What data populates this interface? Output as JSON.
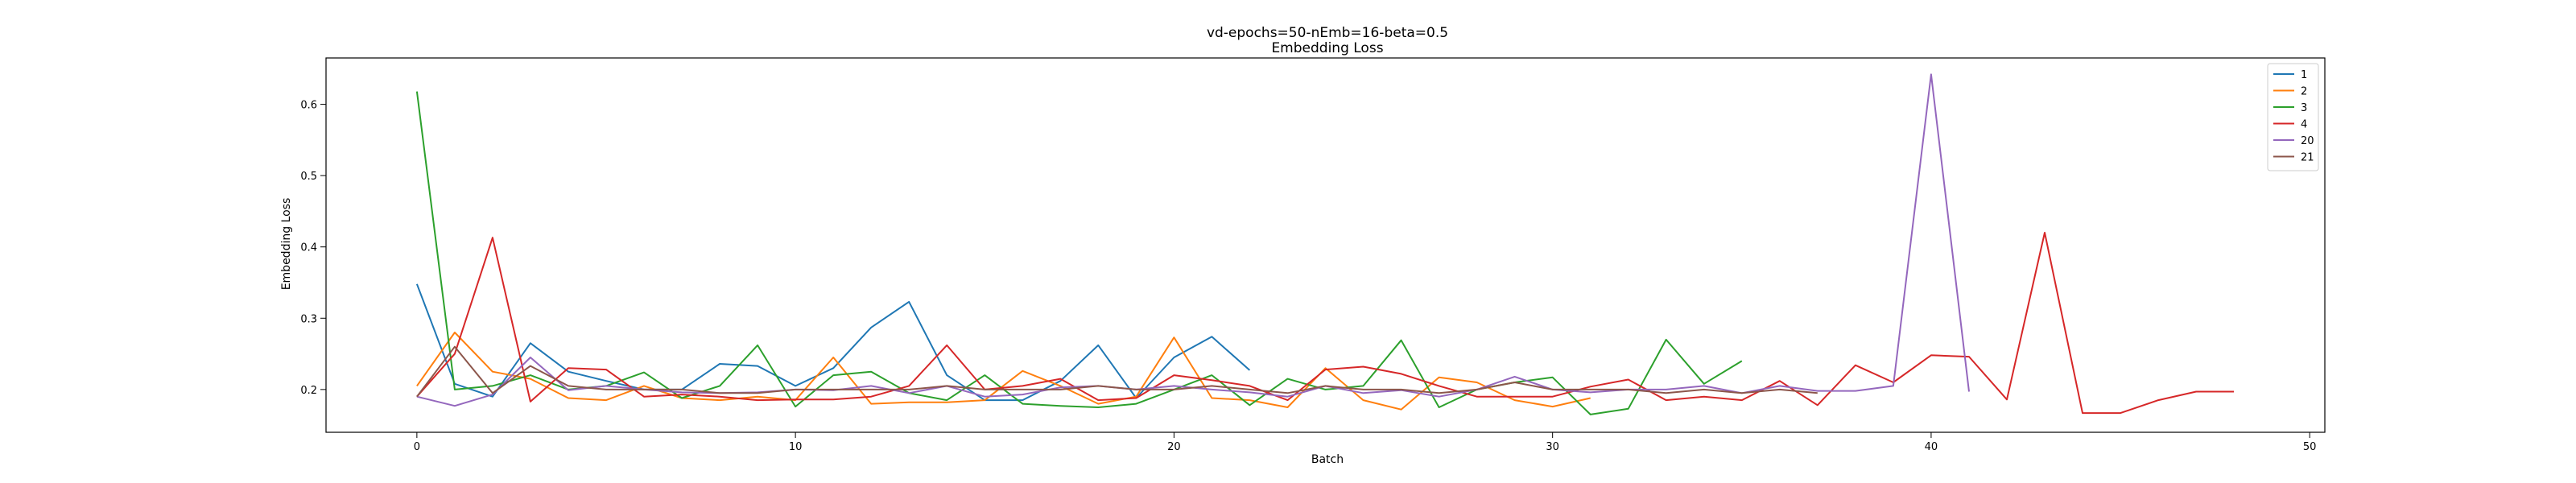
{
  "chart_data": {
    "type": "line",
    "title": "vd-epochs=50-nEmb=16-beta=0.5",
    "subtitle": "Embedding Loss",
    "xlabel": "Batch",
    "ylabel": "Embedding Loss",
    "xlim": [
      -2.4,
      50.4
    ],
    "ylim": [
      0.14,
      0.665
    ],
    "xticks": [
      0,
      10,
      20,
      30,
      40,
      50
    ],
    "yticks": [
      0.2,
      0.3,
      0.4,
      0.5,
      0.6
    ],
    "grid": false,
    "legend_position": "top-right",
    "series": [
      {
        "name": "1",
        "color": "#1f77b4",
        "values": [
          0.348,
          0.208,
          0.19,
          0.265,
          0.225,
          0.212,
          0.2,
          0.2,
          0.236,
          0.233,
          0.205,
          0.23,
          0.287,
          0.323,
          0.22,
          0.185,
          0.185,
          0.212,
          0.262,
          0.188,
          0.245,
          0.274,
          0.227
        ]
      },
      {
        "name": "2",
        "color": "#ff7f0e",
        "values": [
          0.205,
          0.28,
          0.225,
          0.215,
          0.188,
          0.185,
          0.205,
          0.188,
          0.185,
          0.19,
          0.185,
          0.245,
          0.18,
          0.182,
          0.182,
          0.185,
          0.226,
          0.205,
          0.18,
          0.19,
          0.273,
          0.188,
          0.185,
          0.175,
          0.23,
          0.185,
          0.172,
          0.217,
          0.21,
          0.185,
          0.176,
          0.188
        ]
      },
      {
        "name": "3",
        "color": "#2ca02c",
        "values": [
          0.618,
          0.2,
          0.205,
          0.22,
          0.2,
          0.205,
          0.224,
          0.188,
          0.205,
          0.262,
          0.176,
          0.22,
          0.225,
          0.195,
          0.185,
          0.22,
          0.18,
          0.177,
          0.175,
          0.18,
          0.2,
          0.22,
          0.178,
          0.215,
          0.2,
          0.205,
          0.269,
          0.175,
          0.2,
          0.21,
          0.217,
          0.165,
          0.173,
          0.27,
          0.208,
          0.24
        ]
      },
      {
        "name": "4",
        "color": "#d62728",
        "values": [
          0.19,
          0.25,
          0.413,
          0.183,
          0.23,
          0.228,
          0.19,
          0.193,
          0.19,
          0.185,
          0.186,
          0.186,
          0.19,
          0.205,
          0.262,
          0.2,
          0.205,
          0.215,
          0.185,
          0.188,
          0.22,
          0.213,
          0.205,
          0.185,
          0.228,
          0.232,
          0.222,
          0.205,
          0.19,
          0.19,
          0.19,
          0.204,
          0.214,
          0.185,
          0.19,
          0.185,
          0.212,
          0.178,
          0.234,
          0.21,
          0.248,
          0.246,
          0.186,
          0.42,
          0.167,
          0.167,
          0.185,
          0.197,
          0.197
        ]
      },
      {
        "name": "20",
        "color": "#9467bd",
        "values": [
          0.19,
          0.177,
          0.193,
          0.245,
          0.199,
          0.205,
          0.2,
          0.196,
          0.195,
          0.196,
          0.2,
          0.199,
          0.205,
          0.195,
          0.205,
          0.19,
          0.193,
          0.203,
          0.205,
          0.2,
          0.205,
          0.2,
          0.196,
          0.19,
          0.205,
          0.195,
          0.199,
          0.19,
          0.2,
          0.218,
          0.2,
          0.196,
          0.2,
          0.2,
          0.205,
          0.195,
          0.205,
          0.198,
          0.198,
          0.205,
          0.642,
          0.197
        ]
      },
      {
        "name": "21",
        "color": "#8c564b",
        "values": [
          0.19,
          0.26,
          0.195,
          0.233,
          0.205,
          0.2,
          0.2,
          0.2,
          0.195,
          0.195,
          0.2,
          0.2,
          0.2,
          0.2,
          0.205,
          0.2,
          0.2,
          0.2,
          0.205,
          0.2,
          0.2,
          0.205,
          0.2,
          0.195,
          0.205,
          0.2,
          0.2,
          0.195,
          0.2,
          0.21,
          0.2,
          0.2,
          0.2,
          0.195,
          0.2,
          0.195,
          0.2,
          0.195
        ]
      }
    ]
  }
}
